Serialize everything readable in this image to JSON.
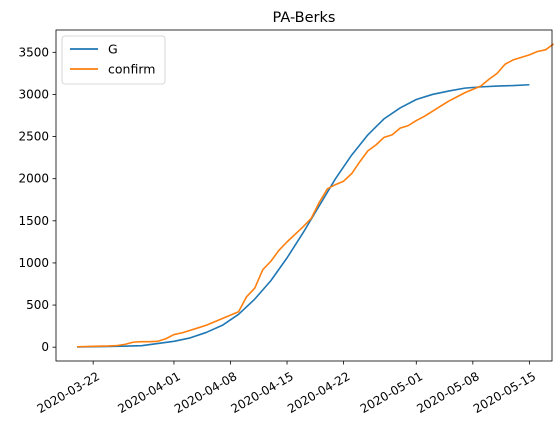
{
  "chart_data": {
    "type": "line",
    "title": "PA-Berks",
    "xlabel": "",
    "ylabel": "",
    "x_range": [
      "2020-03-20",
      "2020-05-15"
    ],
    "ylim": [
      -164,
      3765
    ],
    "x_ticks": [
      "2020-03-22",
      "2020-04-01",
      "2020-04-08",
      "2020-04-15",
      "2020-04-22",
      "2020-05-01",
      "2020-05-08",
      "2020-05-15"
    ],
    "y_ticks": [
      0,
      500,
      1000,
      1500,
      2000,
      2500,
      3000,
      3500
    ],
    "grid": false,
    "legend": "upper-left",
    "series": [
      {
        "name": "G",
        "color": "#1f77b4",
        "points": [
          [
            "2020-03-20",
            3
          ],
          [
            "2020-03-24",
            8
          ],
          [
            "2020-03-28",
            18
          ],
          [
            "2020-04-01",
            70
          ],
          [
            "2020-04-03",
            110
          ],
          [
            "2020-04-05",
            175
          ],
          [
            "2020-04-07",
            260
          ],
          [
            "2020-04-09",
            390
          ],
          [
            "2020-04-11",
            570
          ],
          [
            "2020-04-13",
            790
          ],
          [
            "2020-04-15",
            1060
          ],
          [
            "2020-04-17",
            1360
          ],
          [
            "2020-04-19",
            1680
          ],
          [
            "2020-04-21",
            2000
          ],
          [
            "2020-04-23",
            2280
          ],
          [
            "2020-04-25",
            2520
          ],
          [
            "2020-04-27",
            2710
          ],
          [
            "2020-04-29",
            2840
          ],
          [
            "2020-05-01",
            2940
          ],
          [
            "2020-05-03",
            3000
          ],
          [
            "2020-05-05",
            3040
          ],
          [
            "2020-05-07",
            3075
          ],
          [
            "2020-05-09",
            3090
          ],
          [
            "2020-05-11",
            3100
          ],
          [
            "2020-05-13",
            3105
          ],
          [
            "2020-05-15",
            3115
          ]
        ]
      },
      {
        "name": "confirm",
        "color": "#ff7f0e",
        "points": [
          [
            "2020-03-20",
            5
          ],
          [
            "2020-03-22",
            10
          ],
          [
            "2020-03-24",
            15
          ],
          [
            "2020-03-25",
            20
          ],
          [
            "2020-03-26",
            35
          ],
          [
            "2020-03-27",
            60
          ],
          [
            "2020-03-28",
            65
          ],
          [
            "2020-03-29",
            65
          ],
          [
            "2020-03-30",
            70
          ],
          [
            "2020-03-31",
            100
          ],
          [
            "2020-04-01",
            150
          ],
          [
            "2020-04-02",
            170
          ],
          [
            "2020-04-03",
            200
          ],
          [
            "2020-04-04",
            230
          ],
          [
            "2020-04-05",
            260
          ],
          [
            "2020-04-06",
            300
          ],
          [
            "2020-04-07",
            340
          ],
          [
            "2020-04-08",
            380
          ],
          [
            "2020-04-09",
            420
          ],
          [
            "2020-04-10",
            600
          ],
          [
            "2020-04-11",
            700
          ],
          [
            "2020-04-12",
            920
          ],
          [
            "2020-04-13",
            1020
          ],
          [
            "2020-04-14",
            1150
          ],
          [
            "2020-04-15",
            1250
          ],
          [
            "2020-04-16",
            1340
          ],
          [
            "2020-04-17",
            1430
          ],
          [
            "2020-04-18",
            1530
          ],
          [
            "2020-04-19",
            1720
          ],
          [
            "2020-04-20",
            1880
          ],
          [
            "2020-04-21",
            1930
          ],
          [
            "2020-04-22",
            1970
          ],
          [
            "2020-04-23",
            2060
          ],
          [
            "2020-04-24",
            2200
          ],
          [
            "2020-04-25",
            2330
          ],
          [
            "2020-04-26",
            2400
          ],
          [
            "2020-04-27",
            2490
          ],
          [
            "2020-04-28",
            2520
          ],
          [
            "2020-04-29",
            2600
          ],
          [
            "2020-04-30",
            2630
          ],
          [
            "2020-05-01",
            2690
          ],
          [
            "2020-05-02",
            2740
          ],
          [
            "2020-05-03",
            2800
          ],
          [
            "2020-05-04",
            2860
          ],
          [
            "2020-05-05",
            2920
          ],
          [
            "2020-05-06",
            2970
          ],
          [
            "2020-05-07",
            3020
          ],
          [
            "2020-05-08",
            3060
          ],
          [
            "2020-05-09",
            3100
          ],
          [
            "2020-05-10",
            3180
          ],
          [
            "2020-05-11",
            3250
          ],
          [
            "2020-05-12",
            3360
          ],
          [
            "2020-05-13",
            3410
          ],
          [
            "2020-05-14",
            3440
          ],
          [
            "2020-05-15",
            3470
          ],
          [
            "2020-05-16",
            3510
          ],
          [
            "2020-05-17",
            3530
          ],
          [
            "2020-05-18",
            3600
          ]
        ]
      }
    ]
  }
}
